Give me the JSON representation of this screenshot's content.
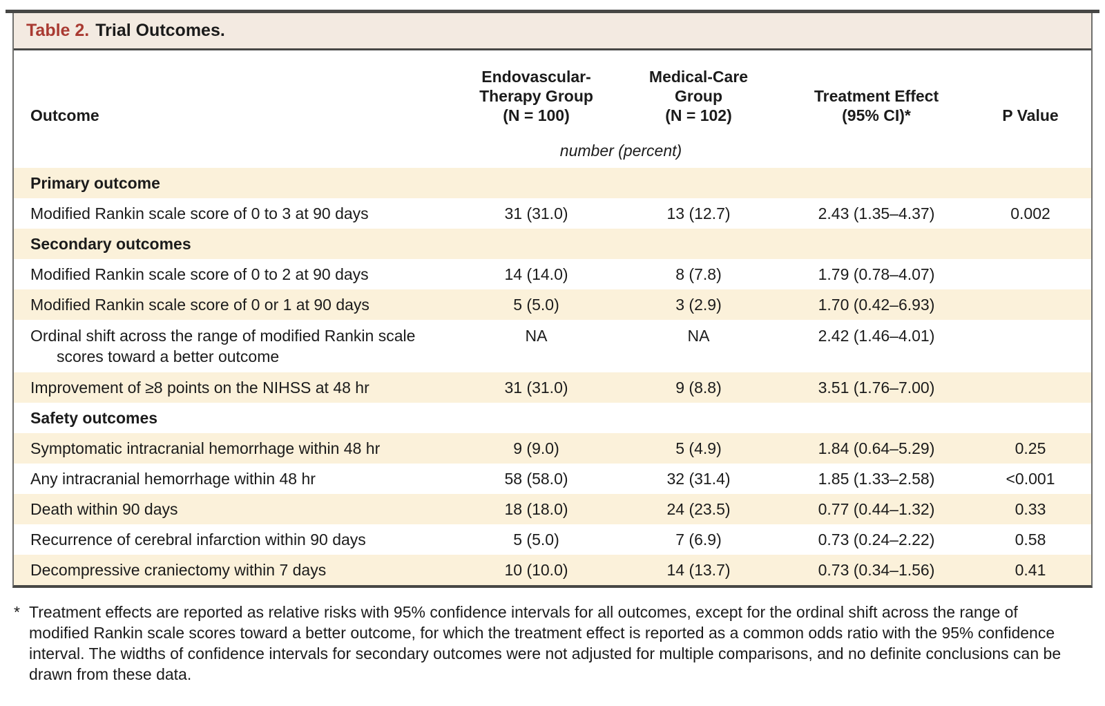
{
  "colors": {
    "accent-red": "#a93a32",
    "band-bg": "#f3eae1",
    "stripe-cream": "#fbf1da",
    "border-dark": "#474745",
    "border-mid": "#6f6f6d",
    "text-ink": "#1b1b1b"
  },
  "title": {
    "label": "Table 2.",
    "text": "Trial Outcomes."
  },
  "columns": {
    "outcome": "Outcome",
    "endovascular": "Endovascular-\nTherapy Group\n(N = 100)",
    "medical": "Medical-Care\nGroup\n(N = 102)",
    "treatment": "Treatment Effect\n(95% CI)*",
    "p_value": "P Value"
  },
  "units_note": "number (percent)",
  "rows": [
    {
      "type": "section",
      "outcome": "Primary outcome"
    },
    {
      "type": "data",
      "outcome": "Modified Rankin scale score of 0 to 3 at 90 days",
      "endo": "31 (31.0)",
      "medical": "13 (12.7)",
      "effect": "2.43 (1.35–4.37)",
      "p": "0.002"
    },
    {
      "type": "section",
      "outcome": "Secondary outcomes"
    },
    {
      "type": "data",
      "outcome": "Modified Rankin scale score of 0 to 2 at 90 days",
      "endo": "14 (14.0)",
      "medical": "8 (7.8)",
      "effect": "1.79 (0.78–4.07)",
      "p": ""
    },
    {
      "type": "data",
      "outcome": "Modified Rankin scale score of 0 or 1 at 90 days",
      "endo": "5 (5.0)",
      "medical": "3 (2.9)",
      "effect": "1.70 (0.42–6.93)",
      "p": ""
    },
    {
      "type": "data",
      "outcome": "Ordinal shift across the range of modified Rankin scale",
      "outcome2": "scores toward a better outcome",
      "endo": "NA",
      "medical": "NA",
      "effect": "2.42 (1.46–4.01)",
      "p": ""
    },
    {
      "type": "data",
      "outcome": "Improvement of ≥8 points on the NIHSS at 48 hr",
      "endo": "31 (31.0)",
      "medical": "9 (8.8)",
      "effect": "3.51 (1.76–7.00)",
      "p": ""
    },
    {
      "type": "section",
      "outcome": "Safety outcomes"
    },
    {
      "type": "data",
      "outcome": "Symptomatic intracranial hemorrhage within 48 hr",
      "endo": "9 (9.0)",
      "medical": "5 (4.9)",
      "effect": "1.84 (0.64–5.29)",
      "p": "0.25"
    },
    {
      "type": "data",
      "outcome": "Any intracranial hemorrhage within 48 hr",
      "endo": "58 (58.0)",
      "medical": "32 (31.4)",
      "effect": "1.85 (1.33–2.58)",
      "p": "<0.001"
    },
    {
      "type": "data",
      "outcome": "Death within 90 days",
      "endo": "18 (18.0)",
      "medical": "24 (23.5)",
      "effect": "0.77 (0.44–1.32)",
      "p": "0.33"
    },
    {
      "type": "data",
      "outcome": "Recurrence of cerebral infarction within 90 days",
      "endo": "5 (5.0)",
      "medical": "7 (6.9)",
      "effect": "0.73 (0.24–2.22)",
      "p": "0.58"
    },
    {
      "type": "data",
      "outcome": "Decompressive craniectomy within 7 days",
      "endo": "10 (10.0)",
      "medical": "14 (13.7)",
      "effect": "0.73 (0.34–1.56)",
      "p": "0.41"
    }
  ],
  "footnote": {
    "marker": "*",
    "text": "Treatment effects are reported as relative risks with 95% confidence intervals for all outcomes, except for the ordinal shift across the range of modified Rankin scale scores toward a better outcome, for which the treatment effect is reported as a common odds ratio with the 95% confidence interval. The widths of confidence intervals for secondary outcomes were not adjusted for multiple comparisons, and no definite conclusions can be drawn from these data."
  }
}
